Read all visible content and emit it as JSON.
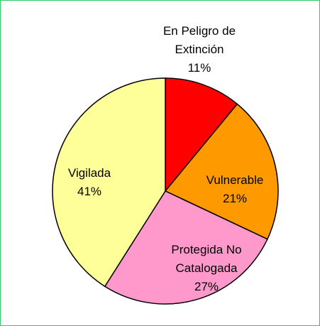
{
  "chart_data": {
    "type": "pie",
    "categories": [
      "En Peligro de Extinción",
      "Vulnerable",
      "Protegida No Catalogada",
      "Vigilada"
    ],
    "values": [
      11,
      21,
      27,
      41
    ],
    "value_labels": [
      "11%",
      "21%",
      "27%",
      "41%"
    ],
    "colors": [
      "#ff0000",
      "#ff9900",
      "#ff99cc",
      "#ffff99"
    ]
  }
}
